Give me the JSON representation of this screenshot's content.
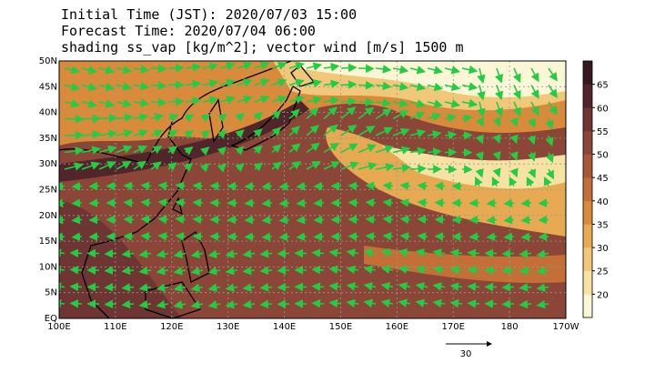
{
  "header": {
    "lines": [
      "Initial Time (JST): 2020/07/03 15:00",
      "Forecast Time: 2020/07/04 06:00",
      "shading ss_vap [kg/m^2]; vector wind [m/s] 1500 m"
    ]
  },
  "map": {
    "lat_labels": [
      "50N",
      "45N",
      "40N",
      "35N",
      "30N",
      "25N",
      "20N",
      "15N",
      "10N",
      "5N",
      "EQ"
    ],
    "lon_labels": [
      "100E",
      "110E",
      "120E",
      "130E",
      "140E",
      "150E",
      "160E",
      "170E",
      "180",
      "170W"
    ]
  },
  "colorbar": {
    "ticks": [
      20,
      25,
      30,
      35,
      40,
      45,
      50,
      55,
      60,
      65
    ],
    "lim": [
      15,
      70
    ],
    "colors": [
      "#fbf7d6",
      "#f6e3a4",
      "#f1c879",
      "#e8a953",
      "#d98a3a",
      "#c46f37",
      "#a85838",
      "#8c4637",
      "#6e3533",
      "#52252a",
      "#361820"
    ]
  },
  "reference_vector": {
    "label": "30"
  }
}
